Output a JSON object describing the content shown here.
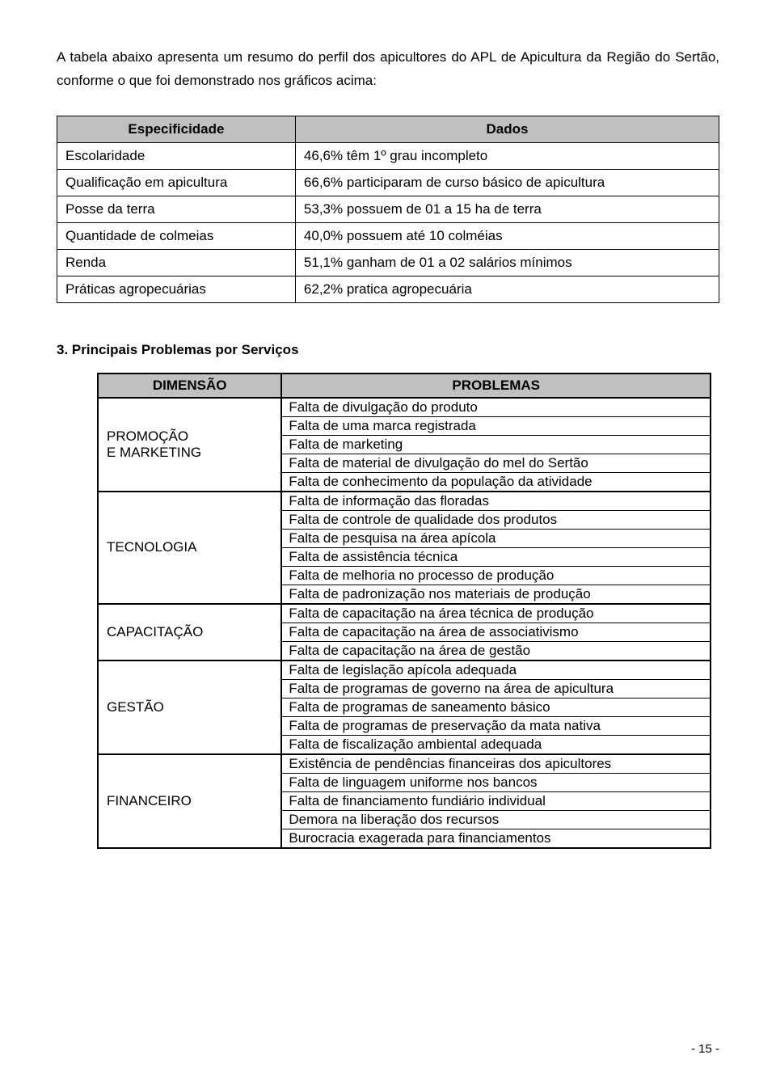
{
  "intro": "A tabela abaixo apresenta um resumo do perfil dos apicultores do APL de Apicultura da Região do Sertão, conforme o que foi demonstrado nos gráficos acima:",
  "table1": {
    "header_left": "Especificidade",
    "header_right": "Dados",
    "rows": [
      {
        "left": "Escolaridade",
        "right": "46,6% têm 1º grau incompleto"
      },
      {
        "left": "Qualificação em apicultura",
        "right": "66,6% participaram de curso básico de apicultura"
      },
      {
        "left": "Posse da terra",
        "right": "53,3% possuem de 01 a 15 ha de terra"
      },
      {
        "left": "Quantidade de colmeias",
        "right": "40,0% possuem até 10 colméias"
      },
      {
        "left": "Renda",
        "right": "51,1% ganham de 01 a 02 salários mínimos"
      },
      {
        "left": "Práticas agropecuárias",
        "right": "62,2% pratica agropecuária"
      }
    ]
  },
  "section_title": "3. Principais Problemas por  Serviços",
  "table2": {
    "header_left": "DIMENSÃO",
    "header_right": "PROBLEMAS",
    "groups": [
      {
        "dimension": "PROMOÇÃO\nE MARKETING",
        "problems": [
          "Falta de divulgação do produto",
          "Falta de uma marca registrada",
          "Falta de marketing",
          "Falta de material de divulgação do mel do Sertão",
          "Falta de conhecimento da população da atividade"
        ]
      },
      {
        "dimension": "TECNOLOGIA",
        "problems": [
          "Falta de informação das floradas",
          "Falta de controle de qualidade dos produtos",
          "Falta de pesquisa na área apícola",
          "Falta de assistência técnica",
          "Falta de melhoria no processo de produção",
          "Falta de padronização nos materiais de produção"
        ]
      },
      {
        "dimension": "CAPACITAÇÃO",
        "problems": [
          "Falta de capacitação na área técnica de produção",
          "Falta de capacitação na área de associativismo",
          "Falta de capacitação na área de gestão"
        ]
      },
      {
        "dimension": "GESTÃO",
        "problems": [
          "Falta de legislação apícola adequada",
          "Falta de programas de governo na área de apicultura",
          "Falta de programas de saneamento básico",
          "Falta de programas de preservação da mata nativa",
          "Falta de fiscalização ambiental adequada"
        ]
      },
      {
        "dimension": "FINANCEIRO",
        "problems": [
          "Existência de pendências financeiras dos apicultores",
          "Falta de linguagem uniforme nos bancos",
          "Falta de financiamento fundiário individual",
          "Demora na liberação dos recursos",
          "Burocracia exagerada para financiamentos"
        ]
      }
    ]
  },
  "page_number": "- 15 -"
}
